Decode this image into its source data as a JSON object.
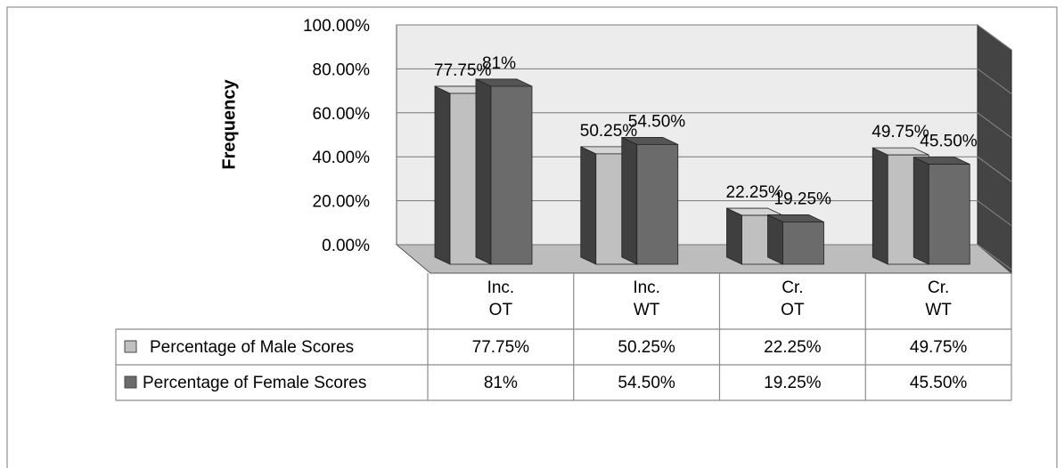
{
  "chart_data": {
    "type": "bar3d",
    "y_label": "Frequency",
    "categories": [
      [
        "Inc.",
        "OT"
      ],
      [
        "Inc.",
        "WT"
      ],
      [
        "Cr.",
        "OT"
      ],
      [
        "Cr.",
        "WT"
      ]
    ],
    "series": [
      {
        "name": "Percentage of Male Scores",
        "color": "#c0c0c0",
        "side": "#3f3f3f",
        "top": "#d4d4d4",
        "values": [
          77.75,
          50.25,
          22.25,
          49.75
        ],
        "value_labels": [
          "77.75%",
          "50.25%",
          "22.25%",
          "49.75%"
        ]
      },
      {
        "name": "Percentage of Female Scores",
        "color": "#6b6b6b",
        "side": "#3f3f3f",
        "top": "#555555",
        "values": [
          81,
          54.5,
          19.25,
          45.5
        ],
        "value_labels": [
          "81%",
          "54.50%",
          "19.25%",
          "45.50%"
        ]
      }
    ],
    "ylim": [
      0,
      100
    ],
    "yticks": [
      {
        "value": 0,
        "label": "0.00%"
      },
      {
        "value": 20,
        "label": "20.00%"
      },
      {
        "value": 40,
        "label": "40.00%"
      },
      {
        "value": 60,
        "label": "60.00%"
      },
      {
        "value": 80,
        "label": "80.00%"
      },
      {
        "value": 100,
        "label": "100.00%"
      }
    ],
    "grid": true
  }
}
